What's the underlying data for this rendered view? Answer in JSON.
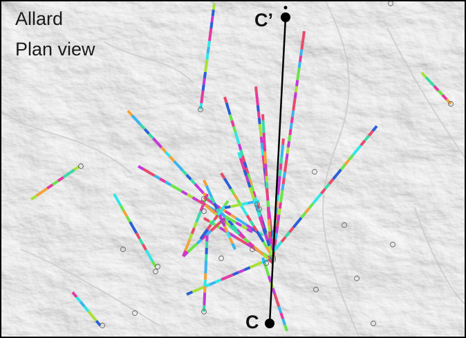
{
  "title": [
    "Allard",
    "Plan view"
  ],
  "section": {
    "start_label": "C",
    "end_label": "C’"
  },
  "colors": {
    "frame": "#000000",
    "section_line": "#000000",
    "trace_palette": [
      "#32e6e6",
      "#3ad9a8",
      "#6be34a",
      "#a8e03a",
      "#39b4f0",
      "#2a5fd8",
      "#f2a33a",
      "#e84a6a",
      "#e43aa0",
      "#c23ad8"
    ],
    "collar": "#666666"
  },
  "background": "shaded-relief-terrain"
}
